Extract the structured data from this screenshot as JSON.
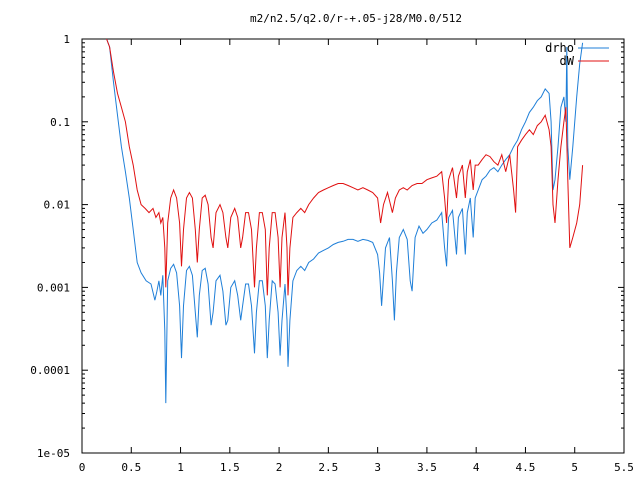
{
  "chart_data": {
    "type": "line",
    "title": "m2/n2.5/q2.0/r-+.05-j28/M0.0/512",
    "xlabel": "",
    "ylabel": "",
    "xlim": [
      0,
      5.5
    ],
    "ylim": [
      1e-05,
      1
    ],
    "yscale": "log",
    "grid": false,
    "legend_position": "top-right",
    "x_ticks": [
      {
        "value": 0,
        "label": "0"
      },
      {
        "value": 0.5,
        "label": "0.5"
      },
      {
        "value": 1,
        "label": "1"
      },
      {
        "value": 1.5,
        "label": "1.5"
      },
      {
        "value": 2,
        "label": "2"
      },
      {
        "value": 2.5,
        "label": "2.5"
      },
      {
        "value": 3,
        "label": "3"
      },
      {
        "value": 3.5,
        "label": "3.5"
      },
      {
        "value": 4,
        "label": "4"
      },
      {
        "value": 4.5,
        "label": "4.5"
      },
      {
        "value": 5,
        "label": "5"
      },
      {
        "value": 5.5,
        "label": "5.5"
      }
    ],
    "y_ticks": [
      {
        "value": 1,
        "label": "1"
      },
      {
        "value": 0.1,
        "label": "0.1"
      },
      {
        "value": 0.01,
        "label": "0.01"
      },
      {
        "value": 0.001,
        "label": "0.001"
      },
      {
        "value": 0.0001,
        "label": "0.0001"
      },
      {
        "value": 1e-05,
        "label": "1e-05"
      }
    ],
    "series": [
      {
        "name": "drho",
        "color": "#1f7fd8",
        "points": [
          [
            0.25,
            1.0
          ],
          [
            0.28,
            0.8
          ],
          [
            0.32,
            0.3
          ],
          [
            0.36,
            0.12
          ],
          [
            0.4,
            0.05
          ],
          [
            0.44,
            0.025
          ],
          [
            0.48,
            0.012
          ],
          [
            0.52,
            0.005
          ],
          [
            0.56,
            0.002
          ],
          [
            0.6,
            0.0015
          ],
          [
            0.65,
            0.0012
          ],
          [
            0.7,
            0.0011
          ],
          [
            0.74,
            0.0007
          ],
          [
            0.76,
            0.0009
          ],
          [
            0.78,
            0.0012
          ],
          [
            0.8,
            0.0008
          ],
          [
            0.82,
            0.0014
          ],
          [
            0.84,
            0.0003
          ],
          [
            0.85,
            4e-05
          ],
          [
            0.87,
            0.0012
          ],
          [
            0.9,
            0.0017
          ],
          [
            0.93,
            0.0019
          ],
          [
            0.96,
            0.0015
          ],
          [
            0.99,
            0.0006
          ],
          [
            1.01,
            0.00014
          ],
          [
            1.03,
            0.0006
          ],
          [
            1.06,
            0.0016
          ],
          [
            1.09,
            0.0018
          ],
          [
            1.12,
            0.0014
          ],
          [
            1.15,
            0.0005
          ],
          [
            1.17,
            0.00025
          ],
          [
            1.19,
            0.0008
          ],
          [
            1.22,
            0.0016
          ],
          [
            1.25,
            0.0017
          ],
          [
            1.28,
            0.0011
          ],
          [
            1.31,
            0.00035
          ],
          [
            1.33,
            0.0005
          ],
          [
            1.36,
            0.0012
          ],
          [
            1.4,
            0.0014
          ],
          [
            1.43,
            0.0009
          ],
          [
            1.46,
            0.00035
          ],
          [
            1.48,
            0.0004
          ],
          [
            1.51,
            0.001
          ],
          [
            1.55,
            0.0012
          ],
          [
            1.58,
            0.0008
          ],
          [
            1.61,
            0.0004
          ],
          [
            1.63,
            0.0006
          ],
          [
            1.66,
            0.0011
          ],
          [
            1.69,
            0.0011
          ],
          [
            1.72,
            0.0006
          ],
          [
            1.75,
            0.00016
          ],
          [
            1.77,
            0.0005
          ],
          [
            1.8,
            0.0012
          ],
          [
            1.83,
            0.0012
          ],
          [
            1.86,
            0.0006
          ],
          [
            1.88,
            0.00014
          ],
          [
            1.9,
            0.0004
          ],
          [
            1.93,
            0.0012
          ],
          [
            1.96,
            0.0011
          ],
          [
            1.99,
            0.0005
          ],
          [
            2.01,
            0.00015
          ],
          [
            2.03,
            0.0004
          ],
          [
            2.06,
            0.0011
          ],
          [
            2.08,
            0.0004
          ],
          [
            2.09,
            0.00011
          ],
          [
            2.11,
            0.0004
          ],
          [
            2.14,
            0.0012
          ],
          [
            2.18,
            0.0016
          ],
          [
            2.22,
            0.0018
          ],
          [
            2.26,
            0.0016
          ],
          [
            2.3,
            0.002
          ],
          [
            2.35,
            0.0022
          ],
          [
            2.4,
            0.0026
          ],
          [
            2.45,
            0.0028
          ],
          [
            2.5,
            0.003
          ],
          [
            2.55,
            0.0033
          ],
          [
            2.6,
            0.0035
          ],
          [
            2.65,
            0.0036
          ],
          [
            2.7,
            0.0038
          ],
          [
            2.75,
            0.0038
          ],
          [
            2.8,
            0.0036
          ],
          [
            2.85,
            0.0038
          ],
          [
            2.9,
            0.0037
          ],
          [
            2.95,
            0.0035
          ],
          [
            3.0,
            0.0025
          ],
          [
            3.02,
            0.0015
          ],
          [
            3.04,
            0.0006
          ],
          [
            3.05,
            0.0009
          ],
          [
            3.08,
            0.003
          ],
          [
            3.12,
            0.004
          ],
          [
            3.15,
            0.0012
          ],
          [
            3.17,
            0.0004
          ],
          [
            3.19,
            0.0015
          ],
          [
            3.22,
            0.004
          ],
          [
            3.26,
            0.005
          ],
          [
            3.3,
            0.0038
          ],
          [
            3.33,
            0.0012
          ],
          [
            3.35,
            0.0009
          ],
          [
            3.38,
            0.004
          ],
          [
            3.42,
            0.0055
          ],
          [
            3.46,
            0.0045
          ],
          [
            3.5,
            0.005
          ],
          [
            3.55,
            0.006
          ],
          [
            3.6,
            0.0065
          ],
          [
            3.65,
            0.008
          ],
          [
            3.68,
            0.003
          ],
          [
            3.7,
            0.0018
          ],
          [
            3.72,
            0.007
          ],
          [
            3.76,
            0.0085
          ],
          [
            3.8,
            0.0025
          ],
          [
            3.82,
            0.007
          ],
          [
            3.86,
            0.009
          ],
          [
            3.89,
            0.0025
          ],
          [
            3.91,
            0.008
          ],
          [
            3.94,
            0.012
          ],
          [
            3.97,
            0.004
          ],
          [
            3.99,
            0.012
          ],
          [
            4.02,
            0.015
          ],
          [
            4.06,
            0.02
          ],
          [
            4.1,
            0.022
          ],
          [
            4.14,
            0.026
          ],
          [
            4.18,
            0.028
          ],
          [
            4.22,
            0.025
          ],
          [
            4.26,
            0.03
          ],
          [
            4.3,
            0.035
          ],
          [
            4.34,
            0.04
          ],
          [
            4.38,
            0.05
          ],
          [
            4.42,
            0.06
          ],
          [
            4.46,
            0.08
          ],
          [
            4.5,
            0.1
          ],
          [
            4.54,
            0.13
          ],
          [
            4.58,
            0.15
          ],
          [
            4.62,
            0.18
          ],
          [
            4.66,
            0.2
          ],
          [
            4.7,
            0.25
          ],
          [
            4.74,
            0.22
          ],
          [
            4.76,
            0.1
          ],
          [
            4.78,
            0.015
          ],
          [
            4.8,
            0.02
          ],
          [
            4.83,
            0.05
          ],
          [
            4.86,
            0.15
          ],
          [
            4.89,
            0.2
          ],
          [
            4.91,
            0.1
          ],
          [
            4.92,
            0.8
          ],
          [
            4.93,
            0.05
          ],
          [
            4.95,
            0.02
          ],
          [
            4.98,
            0.05
          ],
          [
            5.02,
            0.2
          ],
          [
            5.05,
            0.5
          ],
          [
            5.08,
            0.9
          ]
        ]
      },
      {
        "name": "dW",
        "color": "#e01010",
        "points": [
          [
            0.25,
            1.0
          ],
          [
            0.28,
            0.8
          ],
          [
            0.32,
            0.4
          ],
          [
            0.36,
            0.22
          ],
          [
            0.4,
            0.15
          ],
          [
            0.44,
            0.1
          ],
          [
            0.48,
            0.05
          ],
          [
            0.52,
            0.03
          ],
          [
            0.56,
            0.015
          ],
          [
            0.6,
            0.01
          ],
          [
            0.64,
            0.009
          ],
          [
            0.68,
            0.008
          ],
          [
            0.72,
            0.009
          ],
          [
            0.75,
            0.007
          ],
          [
            0.78,
            0.008
          ],
          [
            0.8,
            0.006
          ],
          [
            0.82,
            0.007
          ],
          [
            0.84,
            0.003
          ],
          [
            0.85,
            0.001
          ],
          [
            0.87,
            0.006
          ],
          [
            0.9,
            0.012
          ],
          [
            0.93,
            0.015
          ],
          [
            0.96,
            0.012
          ],
          [
            0.99,
            0.006
          ],
          [
            1.01,
            0.0018
          ],
          [
            1.03,
            0.005
          ],
          [
            1.06,
            0.012
          ],
          [
            1.09,
            0.014
          ],
          [
            1.12,
            0.012
          ],
          [
            1.15,
            0.005
          ],
          [
            1.17,
            0.002
          ],
          [
            1.19,
            0.005
          ],
          [
            1.22,
            0.012
          ],
          [
            1.25,
            0.013
          ],
          [
            1.28,
            0.01
          ],
          [
            1.31,
            0.004
          ],
          [
            1.33,
            0.003
          ],
          [
            1.36,
            0.008
          ],
          [
            1.4,
            0.01
          ],
          [
            1.43,
            0.008
          ],
          [
            1.46,
            0.004
          ],
          [
            1.48,
            0.003
          ],
          [
            1.51,
            0.007
          ],
          [
            1.55,
            0.009
          ],
          [
            1.58,
            0.007
          ],
          [
            1.61,
            0.003
          ],
          [
            1.63,
            0.004
          ],
          [
            1.66,
            0.008
          ],
          [
            1.69,
            0.008
          ],
          [
            1.72,
            0.005
          ],
          [
            1.75,
            0.001
          ],
          [
            1.77,
            0.003
          ],
          [
            1.8,
            0.008
          ],
          [
            1.83,
            0.008
          ],
          [
            1.86,
            0.005
          ],
          [
            1.88,
            0.0008
          ],
          [
            1.9,
            0.003
          ],
          [
            1.93,
            0.008
          ],
          [
            1.96,
            0.008
          ],
          [
            1.99,
            0.004
          ],
          [
            2.01,
            0.001
          ],
          [
            2.03,
            0.004
          ],
          [
            2.06,
            0.008
          ],
          [
            2.08,
            0.003
          ],
          [
            2.09,
            0.0008
          ],
          [
            2.11,
            0.003
          ],
          [
            2.14,
            0.007
          ],
          [
            2.18,
            0.008
          ],
          [
            2.22,
            0.009
          ],
          [
            2.26,
            0.008
          ],
          [
            2.3,
            0.01
          ],
          [
            2.35,
            0.012
          ],
          [
            2.4,
            0.014
          ],
          [
            2.45,
            0.015
          ],
          [
            2.5,
            0.016
          ],
          [
            2.55,
            0.017
          ],
          [
            2.6,
            0.018
          ],
          [
            2.65,
            0.018
          ],
          [
            2.7,
            0.017
          ],
          [
            2.75,
            0.016
          ],
          [
            2.8,
            0.015
          ],
          [
            2.85,
            0.016
          ],
          [
            2.9,
            0.015
          ],
          [
            2.95,
            0.014
          ],
          [
            3.0,
            0.012
          ],
          [
            3.03,
            0.006
          ],
          [
            3.06,
            0.01
          ],
          [
            3.1,
            0.014
          ],
          [
            3.15,
            0.008
          ],
          [
            3.18,
            0.012
          ],
          [
            3.22,
            0.015
          ],
          [
            3.26,
            0.016
          ],
          [
            3.3,
            0.015
          ],
          [
            3.35,
            0.017
          ],
          [
            3.4,
            0.018
          ],
          [
            3.45,
            0.018
          ],
          [
            3.5,
            0.02
          ],
          [
            3.55,
            0.021
          ],
          [
            3.6,
            0.022
          ],
          [
            3.65,
            0.025
          ],
          [
            3.68,
            0.012
          ],
          [
            3.7,
            0.006
          ],
          [
            3.72,
            0.02
          ],
          [
            3.76,
            0.028
          ],
          [
            3.8,
            0.012
          ],
          [
            3.82,
            0.022
          ],
          [
            3.86,
            0.03
          ],
          [
            3.89,
            0.012
          ],
          [
            3.91,
            0.025
          ],
          [
            3.94,
            0.035
          ],
          [
            3.97,
            0.015
          ],
          [
            3.99,
            0.03
          ],
          [
            4.02,
            0.03
          ],
          [
            4.06,
            0.035
          ],
          [
            4.1,
            0.04
          ],
          [
            4.14,
            0.038
          ],
          [
            4.18,
            0.033
          ],
          [
            4.22,
            0.03
          ],
          [
            4.26,
            0.04
          ],
          [
            4.3,
            0.025
          ],
          [
            4.34,
            0.04
          ],
          [
            4.38,
            0.015
          ],
          [
            4.4,
            0.008
          ],
          [
            4.42,
            0.05
          ],
          [
            4.46,
            0.06
          ],
          [
            4.5,
            0.07
          ],
          [
            4.54,
            0.08
          ],
          [
            4.58,
            0.07
          ],
          [
            4.62,
            0.09
          ],
          [
            4.66,
            0.1
          ],
          [
            4.7,
            0.12
          ],
          [
            4.74,
            0.08
          ],
          [
            4.76,
            0.05
          ],
          [
            4.78,
            0.01
          ],
          [
            4.8,
            0.006
          ],
          [
            4.83,
            0.02
          ],
          [
            4.86,
            0.05
          ],
          [
            4.89,
            0.1
          ],
          [
            4.91,
            0.15
          ],
          [
            4.93,
            0.02
          ],
          [
            4.95,
            0.003
          ],
          [
            4.98,
            0.004
          ],
          [
            5.02,
            0.006
          ],
          [
            5.05,
            0.01
          ],
          [
            5.08,
            0.03
          ]
        ]
      }
    ]
  }
}
